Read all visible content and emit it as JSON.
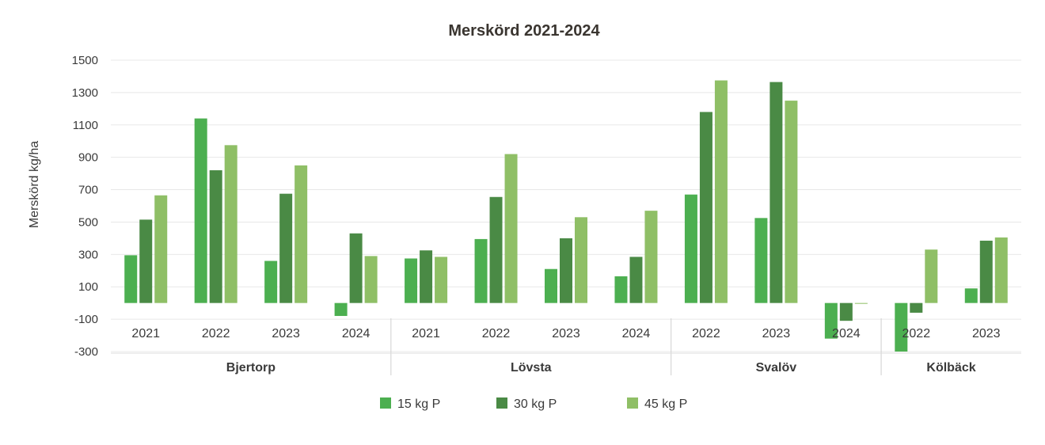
{
  "chart_data": {
    "type": "bar",
    "title": "Merskörd 2021-2024",
    "ylabel": "Merskörd kg/ha",
    "xlabel": "",
    "ylim": [
      -300,
      1500
    ],
    "yticks": [
      1500,
      1300,
      1100,
      900,
      700,
      500,
      300,
      100,
      -100,
      -300
    ],
    "grid": true,
    "legend_position": "bottom",
    "groups": [
      {
        "name": "Bjertorp",
        "years": [
          "2021",
          "2022",
          "2023",
          "2024"
        ]
      },
      {
        "name": "Lövsta",
        "years": [
          "2021",
          "2022",
          "2023",
          "2024"
        ]
      },
      {
        "name": "Svalöv",
        "years": [
          "2022",
          "2023",
          "2024"
        ]
      },
      {
        "name": "Kölbäck",
        "years": [
          "2022",
          "2023"
        ]
      }
    ],
    "categories": [
      "Bjertorp 2021",
      "Bjertorp 2022",
      "Bjertorp 2023",
      "Bjertorp 2024",
      "Lövsta 2021",
      "Lövsta 2022",
      "Lövsta 2023",
      "Lövsta 2024",
      "Svalöv 2022",
      "Svalöv 2023",
      "Svalöv 2024",
      "Kölbäck 2022",
      "Kölbäck 2023"
    ],
    "series": [
      {
        "name": "15 kg P",
        "color": "#4caf50",
        "values": [
          295,
          1140,
          260,
          -80,
          275,
          395,
          210,
          165,
          670,
          525,
          -220,
          -300,
          90
        ]
      },
      {
        "name": "30 kg P",
        "color": "#4a8a45",
        "values": [
          515,
          820,
          675,
          430,
          325,
          655,
          400,
          285,
          1180,
          1365,
          -110,
          -60,
          385
        ]
      },
      {
        "name": "45 kg P",
        "color": "#8fbf66",
        "values": [
          665,
          975,
          850,
          290,
          285,
          920,
          530,
          570,
          1375,
          1250,
          -5,
          330,
          405
        ]
      }
    ]
  }
}
